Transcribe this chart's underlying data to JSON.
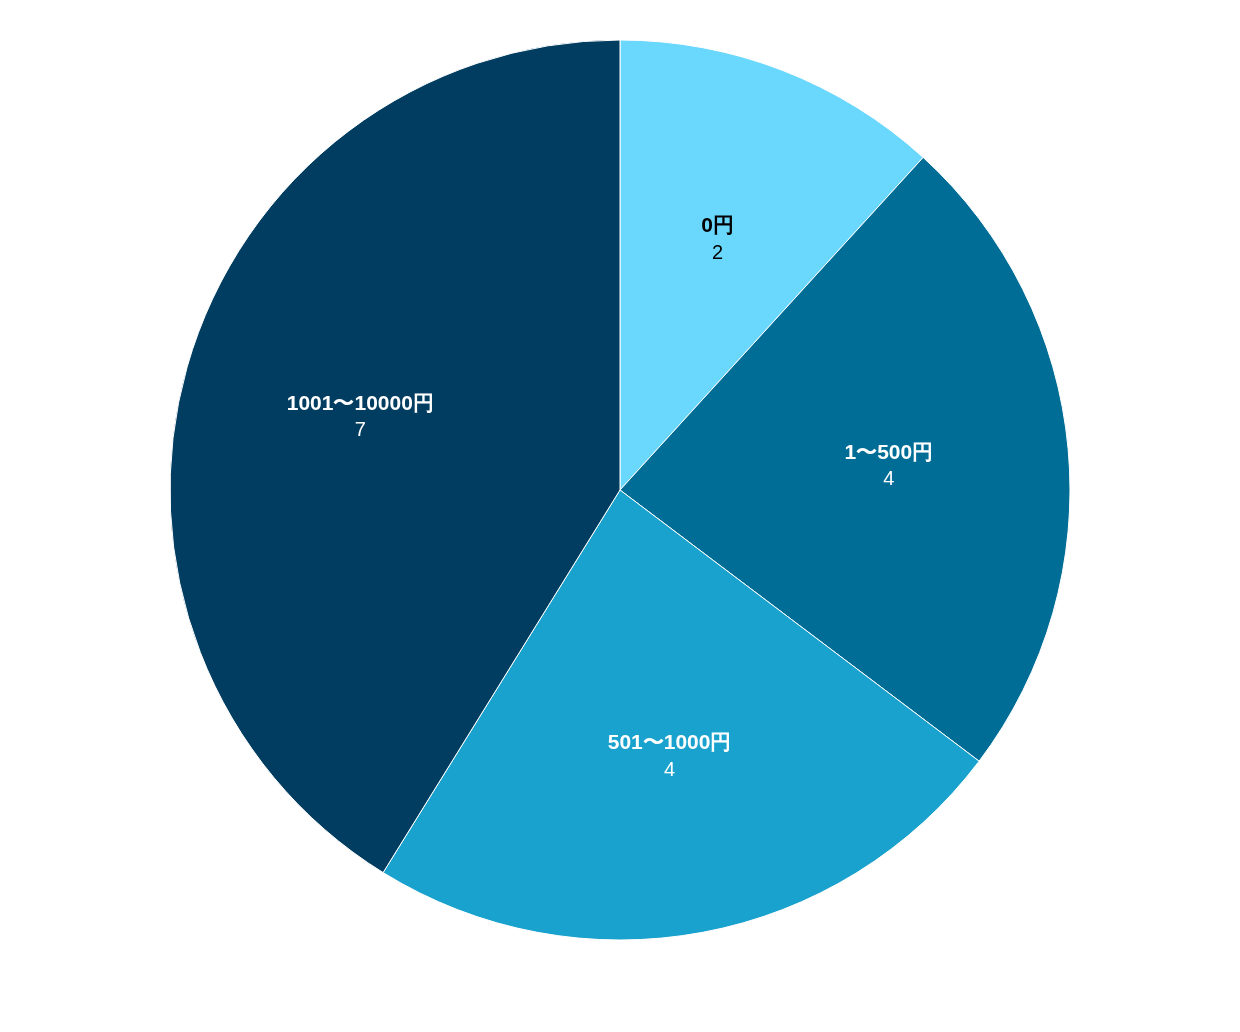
{
  "chart_data": {
    "type": "pie",
    "categories": [
      "0円",
      "1〜500円",
      "501〜1000円",
      "1001〜10000円"
    ],
    "values": [
      2,
      4,
      4,
      7
    ],
    "colors": [
      "#6ad7fd",
      "#006d96",
      "#19a2cd",
      "#003d60"
    ],
    "data_labels": true
  }
}
